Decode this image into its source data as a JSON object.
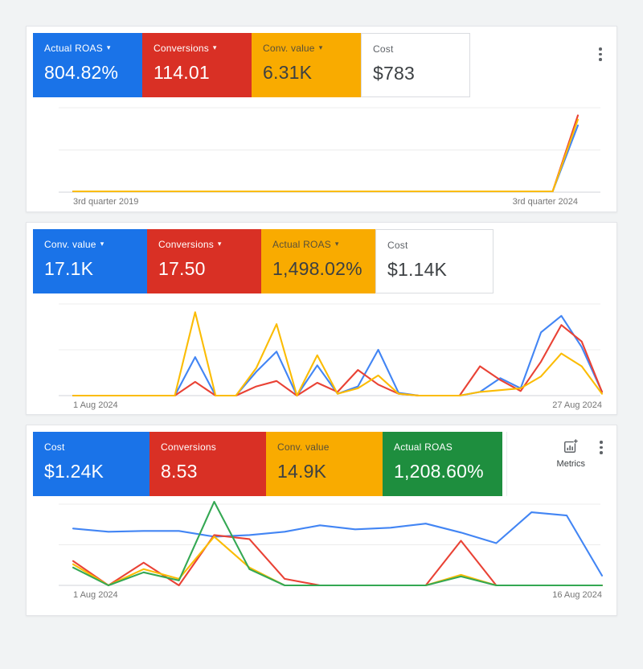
{
  "metrics_button": {
    "label": "Metrics"
  },
  "colors": {
    "card_blue": "#1a73e8",
    "card_red": "#d93025",
    "card_yellow": "#f9ab00",
    "card_green": "#1e8e3e",
    "line_blue": "#4285f4",
    "line_red": "#e94235",
    "line_yellow": "#fbbc04",
    "line_green": "#34a853",
    "axis_label": "#757575"
  },
  "panels": [
    {
      "name": "quarterly-overview",
      "cards": [
        {
          "label": "Actual ROAS",
          "value": "804.82%",
          "color": "blue",
          "dropdown": true
        },
        {
          "label": "Conversions",
          "value": "114.01",
          "color": "red",
          "dropdown": true
        },
        {
          "label": "Conv. value",
          "value": "6.31K",
          "color": "yellow",
          "dropdown": true
        },
        {
          "label": "Cost",
          "value": "$783",
          "color": "white",
          "dropdown": false
        }
      ],
      "chart": {
        "type": "line",
        "x_labels": [
          "3rd quarter 2019",
          "3rd quarter 2024"
        ],
        "point_count": 21,
        "ylim": [
          0,
          100
        ],
        "grid": true,
        "series": [
          {
            "name": "Actual ROAS",
            "color": "#4285f4",
            "values": [
              1,
              1,
              1,
              1,
              1,
              1,
              1,
              1,
              1,
              1,
              1,
              1,
              1,
              1,
              1,
              1,
              1,
              1,
              1,
              1,
              79
            ]
          },
          {
            "name": "Conversions",
            "color": "#e94235",
            "values": [
              1,
              1,
              1,
              1,
              1,
              1,
              1,
              1,
              1,
              1,
              1,
              1,
              1,
              1,
              1,
              1,
              1,
              1,
              1,
              1,
              91
            ]
          },
          {
            "name": "Conv. value",
            "color": "#fbbc04",
            "values": [
              1,
              1,
              1,
              1,
              1,
              1,
              1,
              1,
              1,
              1,
              1,
              1,
              1,
              1,
              1,
              1,
              1,
              1,
              1,
              1,
              86
            ]
          }
        ]
      }
    },
    {
      "name": "august-daily-1-27",
      "cards": [
        {
          "label": "Conv. value",
          "value": "17.1K",
          "color": "blue",
          "dropdown": true
        },
        {
          "label": "Conversions",
          "value": "17.50",
          "color": "red",
          "dropdown": true
        },
        {
          "label": "Actual ROAS",
          "value": "1,498.02%",
          "color": "yellow",
          "dropdown": true
        },
        {
          "label": "Cost",
          "value": "$1.14K",
          "color": "white",
          "dropdown": false
        }
      ],
      "chart": {
        "type": "line",
        "x_labels": [
          "1 Aug 2024",
          "27 Aug 2024"
        ],
        "point_count": 27,
        "ylim": [
          0,
          100
        ],
        "grid": true,
        "series": [
          {
            "name": "Conv. value",
            "color": "#4285f4",
            "values": [
              0,
              0,
              0,
              0,
              0,
              0,
              42,
              0,
              0,
              26,
              48,
              0,
              33,
              2,
              10,
              50,
              3,
              0,
              0,
              0,
              4,
              19,
              8,
              69,
              87,
              53,
              4
            ]
          },
          {
            "name": "Conversions",
            "color": "#e94235",
            "values": [
              0,
              0,
              0,
              0,
              0,
              0,
              15,
              0,
              0,
              10,
              16,
              0,
              14,
              4,
              28,
              12,
              2,
              0,
              0,
              0,
              32,
              17,
              5,
              37,
              77,
              59,
              4
            ]
          },
          {
            "name": "Actual ROAS",
            "color": "#fbbc04",
            "values": [
              0,
              0,
              0,
              0,
              0,
              0,
              91,
              0,
              0,
              30,
              78,
              0,
              44,
              2,
              8,
              22,
              2,
              0,
              0,
              0,
              4,
              6,
              8,
              21,
              46,
              32,
              2
            ]
          }
        ]
      }
    },
    {
      "name": "august-daily-1-16",
      "cards": [
        {
          "label": "Cost",
          "value": "$1.24K",
          "color": "blue",
          "dropdown": false
        },
        {
          "label": "Conversions",
          "value": "8.53",
          "color": "red",
          "dropdown": false
        },
        {
          "label": "Conv. value",
          "value": "14.9K",
          "color": "yellow",
          "dropdown": false
        },
        {
          "label": "Actual ROAS",
          "value": "1,208.60%",
          "color": "green",
          "dropdown": false
        }
      ],
      "chart": {
        "type": "line",
        "x_labels": [
          "1 Aug 2024",
          "16 Aug 2024"
        ],
        "point_count": 16,
        "ylim": [
          0,
          100
        ],
        "grid": true,
        "series": [
          {
            "name": "Cost",
            "color": "#4285f4",
            "values": [
              70,
              66,
              67,
              67,
              60,
              62,
              66,
              74,
              69,
              71,
              76,
              65,
              52,
              90,
              86,
              12
            ]
          },
          {
            "name": "Conversions",
            "color": "#e94235",
            "values": [
              30,
              0,
              28,
              0,
              62,
              57,
              8,
              0,
              0,
              0,
              0,
              55,
              0,
              0,
              0,
              0
            ]
          },
          {
            "name": "Conv. value",
            "color": "#fbbc04",
            "values": [
              26,
              0,
              20,
              8,
              60,
              22,
              0,
              0,
              0,
              0,
              0,
              13,
              0,
              0,
              0,
              0
            ]
          },
          {
            "name": "Actual ROAS",
            "color": "#34a853",
            "values": [
              22,
              0,
              16,
              6,
              103,
              20,
              0,
              0,
              0,
              0,
              0,
              11,
              0,
              0,
              0,
              0
            ]
          }
        ]
      }
    }
  ]
}
